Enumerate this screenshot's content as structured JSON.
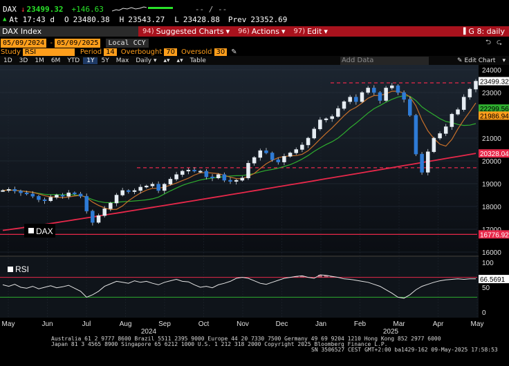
{
  "quote": {
    "ticker": "DAX",
    "arrow": "↓",
    "last": "23499.32",
    "change": "+146.63",
    "dashes": "-- / --",
    "at_label": "At",
    "time": "17:43 d",
    "open_label": "O",
    "open": "23480.38",
    "high_label": "H",
    "high": "23543.27",
    "low_label": "L",
    "low": "23428.88",
    "prev_label": "Prev",
    "prev": "23352.69"
  },
  "menubar": {
    "index_name": "DAX Index",
    "items": [
      {
        "num": "94)",
        "label": "Suggested Charts",
        "arrow": "▾"
      },
      {
        "num": "96)",
        "label": "Actions",
        "arrow": "▾"
      },
      {
        "num": "97)",
        "label": "Edit",
        "arrow": "▾"
      }
    ],
    "right_label": "G 8: daily"
  },
  "dates": {
    "start": "05/09/2024",
    "end": "05/09/2025",
    "currency": "Local CCY"
  },
  "study": {
    "label": "Study",
    "value": "RSI",
    "period_label": "Period",
    "period": "14",
    "overbought_label": "Overbought",
    "overbought": "70",
    "oversold_label": "Oversold",
    "oversold": "30"
  },
  "ranges": [
    "1D",
    "3D",
    "1M",
    "6M",
    "YTD",
    "1Y",
    "5Y",
    "Max"
  ],
  "active_range": "1Y",
  "frequency": "Daily",
  "table_label": "Table",
  "add_data_placeholder": "Add Data",
  "edit_chart_label": "Edit Chart",
  "colors": {
    "accent": "#ff9e1b",
    "menubar": "#a8121d",
    "up": "#29e329",
    "down": "#ff3b3b",
    "ma_long": "#e8284a",
    "ma_mid": "#2fae2f",
    "ma_short": "#c8702a"
  },
  "chart_data": {
    "type": "line",
    "title": "DAX",
    "ylabel": "",
    "ylim": [
      15700,
      24200
    ],
    "y_ticks": [
      "24000",
      "23000",
      "22000",
      "21000",
      "20000",
      "19000",
      "18000",
      "17000",
      "16000"
    ],
    "x_ticks": [
      "May",
      "Jun",
      "Jul",
      "Aug",
      "Sep",
      "Oct",
      "Nov",
      "Dec",
      "Jan",
      "Feb",
      "Mar",
      "Apr",
      "May"
    ],
    "year_labels": [
      "2024",
      "2025"
    ],
    "price_labels": [
      {
        "value": "23499.32",
        "bg": "#ffffff",
        "fg": "#000000",
        "y": 23499
      },
      {
        "value": "22299.56",
        "bg": "#2fae2f",
        "fg": "#000000",
        "y": 22299
      },
      {
        "value": "21986.94",
        "bg": "#ff9e1b",
        "fg": "#000000",
        "y": 21987
      },
      {
        "value": "20328.04",
        "bg": "#e8284a",
        "fg": "#ffffff",
        "y": 20328
      },
      {
        "value": "16776.92",
        "bg": "#e8284a",
        "fg": "#ffffff",
        "y": 16777
      }
    ],
    "reference_lines": [
      23425,
      19700
    ],
    "legend": "DAX",
    "series": [
      {
        "name": "DAX",
        "values": [
          18700,
          18750,
          18680,
          18600,
          18550,
          18450,
          18300,
          18250,
          18400,
          18500,
          18450,
          18600,
          18550,
          18450,
          17800,
          17300,
          17600,
          17900,
          18150,
          18500,
          18700,
          18650,
          18700,
          18850,
          18900,
          18980,
          18700,
          18980,
          19200,
          19400,
          19550,
          19600,
          19550,
          19550,
          19300,
          19250,
          19400,
          19150,
          19100,
          19150,
          19250,
          19900,
          20150,
          20450,
          20350,
          20050,
          19950,
          20200,
          20350,
          20500,
          20700,
          21000,
          21400,
          21800,
          21850,
          21950,
          22300,
          22600,
          22800,
          22600,
          23000,
          23200,
          23000,
          22650,
          23200,
          23300,
          23000,
          22700,
          22000,
          20300,
          19500,
          20400,
          21000,
          21200,
          21500,
          22050,
          22250,
          22800,
          23150,
          23500
        ]
      },
      {
        "name": "RSI",
        "values": [
          55,
          52,
          56,
          50,
          48,
          52,
          47,
          50,
          53,
          49,
          51,
          54,
          48,
          42,
          30,
          35,
          42,
          52,
          57,
          62,
          60,
          58,
          63,
          60,
          62,
          58,
          55,
          60,
          63,
          66,
          62,
          61,
          55,
          50,
          52,
          49,
          55,
          58,
          62,
          68,
          70,
          68,
          63,
          58,
          56,
          60,
          64,
          68,
          70,
          72,
          73,
          70,
          68,
          75,
          74,
          72,
          70,
          67,
          66,
          64,
          62,
          60,
          56,
          52,
          45,
          38,
          30,
          28,
          35,
          45,
          52,
          56,
          60,
          63,
          65,
          66,
          67,
          66,
          67,
          67
        ]
      }
    ],
    "rsi": {
      "label": "RSI",
      "value": "66.5691",
      "ylim": [
        0,
        100
      ],
      "y_ticks": [
        "100",
        "50",
        "0"
      ],
      "overbought": 70,
      "oversold": 30
    }
  },
  "footer": {
    "line1": "Australia 61 2 9777 8600 Brazil 5511 2395 9000 Europe 44 20 7330 7500 Germany 49 69 9204 1210 Hong Kong 852 2977 6000",
    "line2": "Japan 81 3 4565 8900        Singapore 65 6212 1000       U.S. 1 212 318 2000               Copyright 2025 Bloomberg Finance L.P.",
    "line3": "SN 3506527 CEST GMT+2:00 ba1429-162 09-May-2025 17:58:53"
  }
}
